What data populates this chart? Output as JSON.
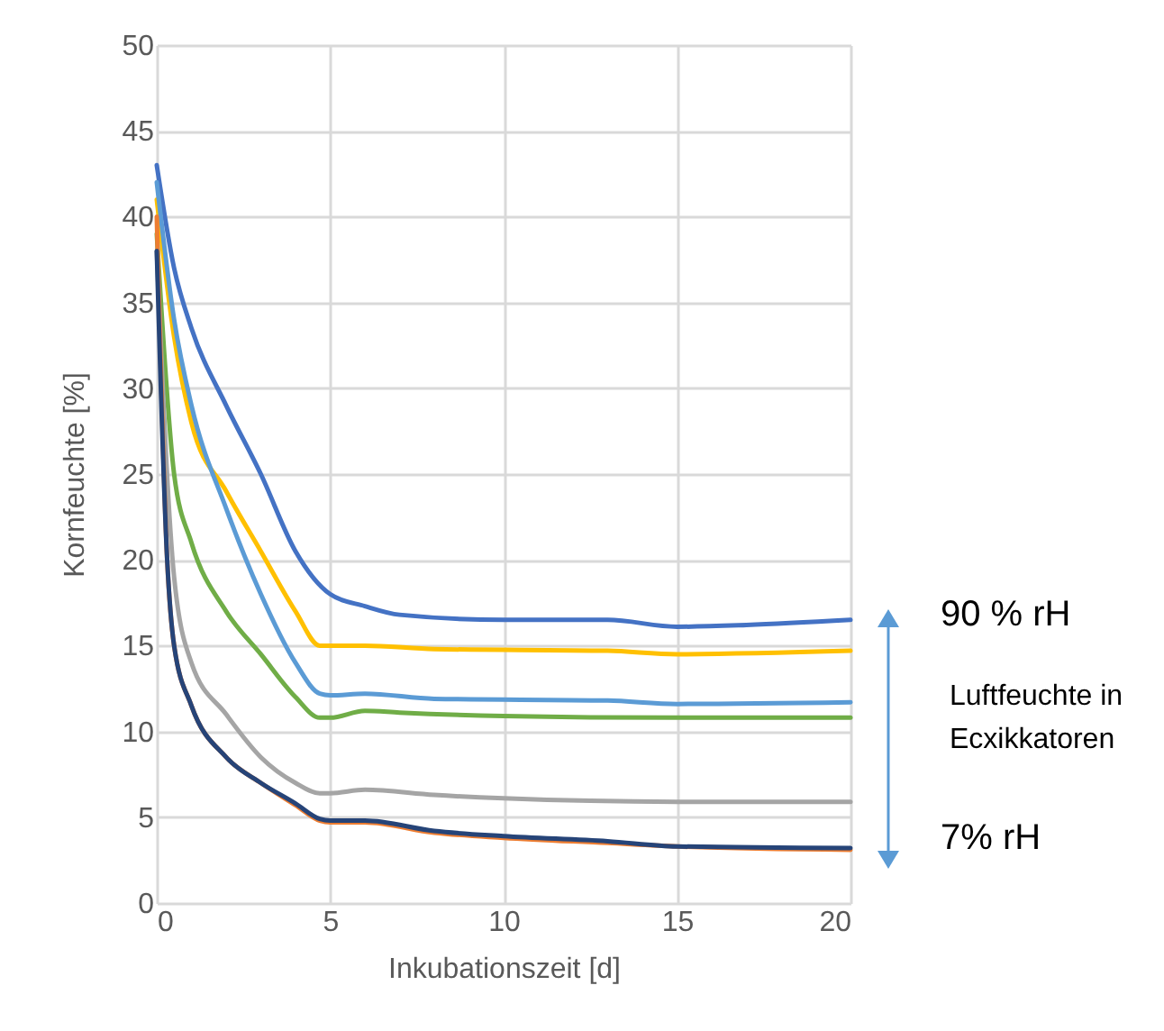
{
  "chart_data": {
    "type": "line",
    "xlabel": "Inkubationszeit [d]",
    "ylabel": "Kornfeuchte [%]",
    "xlim": [
      0,
      20
    ],
    "xticks": [
      0,
      5,
      10,
      15,
      20
    ],
    "ylim": [
      0,
      50
    ],
    "yticks": [
      0,
      5,
      10,
      15,
      20,
      25,
      30,
      35,
      40,
      45,
      50
    ],
    "grid": true,
    "legend": false,
    "annotations": [
      "90 % rH",
      "Luftfeuchte in Ecxikkatoren",
      "7% rH"
    ],
    "series": [
      {
        "color": "#4472c4",
        "x": [
          0,
          0.5,
          1,
          2,
          3,
          4,
          5,
          6,
          7,
          10,
          13,
          15,
          17,
          20
        ],
        "values": [
          43,
          37,
          33.5,
          29,
          25,
          20.5,
          18,
          17.3,
          16.8,
          16.5,
          16.5,
          16.1,
          16.2,
          16.5
        ]
      },
      {
        "color": "#ffc000",
        "x": [
          0,
          0.5,
          1,
          2,
          3,
          4,
          4.7,
          5,
          6,
          8,
          13,
          15,
          20
        ],
        "values": [
          41,
          33,
          28,
          24,
          20.5,
          17,
          15,
          15,
          15,
          14.8,
          14.7,
          14.5,
          14.7
        ]
      },
      {
        "color": "#5b9bd5",
        "x": [
          0,
          0.5,
          1,
          2,
          3,
          4,
          4.7,
          5,
          6,
          8,
          13,
          15,
          20
        ],
        "values": [
          42,
          34,
          29,
          23,
          18,
          14,
          12.2,
          12.1,
          12.2,
          11.9,
          11.8,
          11.6,
          11.7
        ]
      },
      {
        "color": "#70ad47",
        "x": [
          0,
          0.5,
          1,
          2,
          3,
          4,
          4.7,
          5,
          6,
          7,
          10,
          15,
          20
        ],
        "values": [
          39,
          25,
          21,
          17,
          14.5,
          12,
          10.8,
          10.8,
          11.2,
          11.1,
          10.9,
          10.8,
          10.8
        ]
      },
      {
        "color": "#a5a5a5",
        "x": [
          0,
          0.5,
          1,
          2,
          3,
          4,
          4.7,
          5,
          6,
          8,
          10,
          15,
          20
        ],
        "values": [
          38,
          19,
          14,
          11,
          8.5,
          7,
          6.4,
          6.4,
          6.6,
          6.3,
          6.1,
          5.9,
          5.9
        ]
      },
      {
        "color": "#ed7d31",
        "x": [
          0,
          0.3,
          0.5,
          1,
          2,
          3,
          4,
          4.7,
          5,
          6,
          8,
          10,
          13,
          15,
          20
        ],
        "values": [
          40,
          20,
          15,
          11.5,
          8.5,
          7,
          5.7,
          4.8,
          4.7,
          4.7,
          4.1,
          3.8,
          3.5,
          3.3,
          3.1
        ]
      },
      {
        "color": "#264478",
        "x": [
          0,
          0.3,
          0.5,
          1,
          2,
          3,
          4,
          4.7,
          5,
          6,
          8,
          10,
          13,
          15,
          20
        ],
        "values": [
          38,
          20,
          15,
          11.5,
          8.5,
          7,
          5.8,
          4.9,
          4.8,
          4.8,
          4.2,
          3.9,
          3.6,
          3.3,
          3.2
        ]
      }
    ]
  }
}
